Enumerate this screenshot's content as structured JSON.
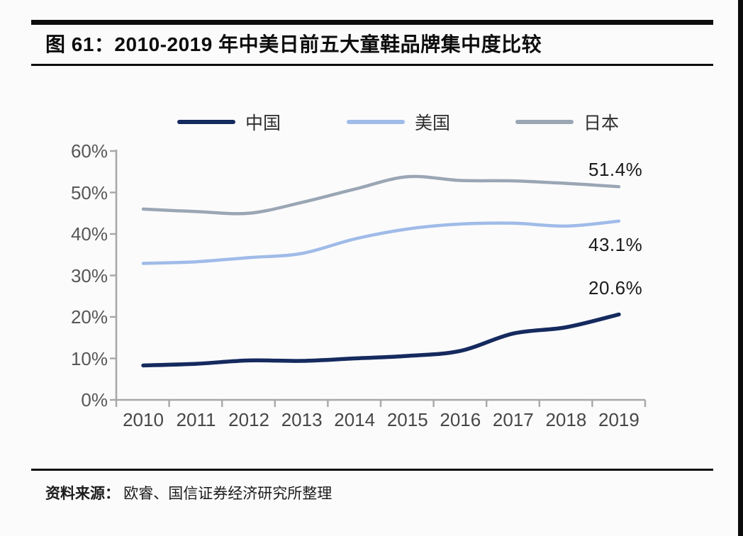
{
  "page": {
    "background": "#fbfbfc",
    "edge_bar_color": "#0b0b0b"
  },
  "header": {
    "title": "图 61：2010-2019 年中美日前五大童鞋品牌集中度比较"
  },
  "footer": {
    "source_label": "资料来源：",
    "source_text": "欧睿、国信证券经济研究所整理"
  },
  "chart_data": {
    "type": "line",
    "title": "图 61：2010-2019 年中美日前五大童鞋品牌集中度比较",
    "x": [
      "2010",
      "2011",
      "2012",
      "2013",
      "2014",
      "2015",
      "2016",
      "2017",
      "2018",
      "2019"
    ],
    "series": [
      {
        "name": "日本",
        "color": "#9aa6b4",
        "stroke_width": 4.5,
        "values": [
          46.0,
          45.4,
          45.0,
          47.6,
          50.8,
          53.8,
          52.9,
          52.8,
          52.2,
          51.4
        ],
        "end_label": "51.4%"
      },
      {
        "name": "美国",
        "color": "#9fbbe8",
        "stroke_width": 4.5,
        "values": [
          32.9,
          33.3,
          34.3,
          35.3,
          38.8,
          41.2,
          42.4,
          42.6,
          41.9,
          43.1
        ],
        "end_label": "43.1%"
      },
      {
        "name": "中国",
        "color": "#152a5e",
        "stroke_width": 5.5,
        "values": [
          8.3,
          8.7,
          9.5,
          9.4,
          10.0,
          10.6,
          11.8,
          16.0,
          17.5,
          20.6
        ],
        "end_label": "20.6%"
      }
    ],
    "legend_order": [
      "中国",
      "美国",
      "日本"
    ],
    "legend_position": "top",
    "ylim": [
      0,
      60
    ],
    "ytick_step": 10,
    "ytick_labels": [
      "0%",
      "10%",
      "20%",
      "30%",
      "40%",
      "50%",
      "60%"
    ],
    "grid": false,
    "smooth": true,
    "axis_color": "#a8a8a8"
  }
}
